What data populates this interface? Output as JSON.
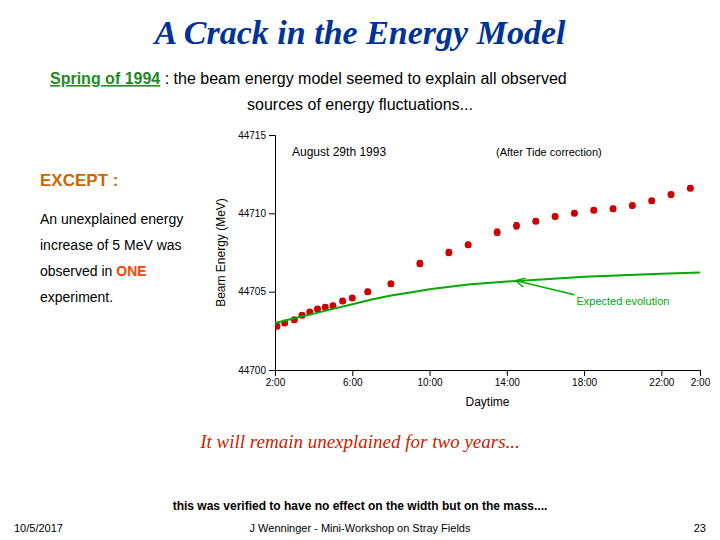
{
  "page": {
    "title": {
      "text": "A Crack in the Energy Model",
      "color": "#003399"
    },
    "intro": [
      [
        {
          "text": "Spring of 1994",
          "color": "#228B22"
        },
        {
          "text": " : the beam energy model seemed to explain all observed"
        }
      ],
      [
        {
          "text": "sources of energy fluctuations..."
        }
      ]
    ],
    "except": {
      "text": "EXCEPT :",
      "color": "#cc6600"
    },
    "description": [
      [
        {
          "text": "An unexplained energy"
        }
      ],
      [
        {
          "text": "increase of 5 MeV was"
        }
      ],
      [
        {
          "text": "observed in "
        },
        {
          "text": "ONE",
          "color": "#ff4400"
        }
      ],
      [
        {
          "text": "experiment."
        }
      ]
    ],
    "conclusion": {
      "text": "It will remain unexplained for two years...",
      "color": "#cc2200"
    },
    "footer": {
      "note": "this was verified to have no effect on the width but on the mass....",
      "center": "J Wenninger - Mini-Workshop on Stray Fields",
      "left": "10/5/2017",
      "right": "23"
    }
  },
  "chart_data": {
    "type": "scatter",
    "title": "August 29th 1993",
    "subtitle": "(After Tide correction)",
    "xlabel": "Daytime",
    "ylabel": "Beam Energy (MeV)",
    "xlim": [
      2,
      24
    ],
    "xticks": [
      {
        "value": 2,
        "label": "2:00"
      },
      {
        "value": 6,
        "label": "6:00"
      },
      {
        "value": 10,
        "label": "10:00"
      },
      {
        "value": 14,
        "label": "14:00"
      },
      {
        "value": 18,
        "label": "18:00"
      },
      {
        "value": 22,
        "label": "22:00"
      },
      {
        "value": 24,
        "label": "2:00"
      }
    ],
    "ylim": [
      44700,
      44715
    ],
    "yticks": [
      44700,
      44705,
      44710,
      44715
    ],
    "grid": false,
    "series": [
      {
        "type": "scatter",
        "color": "#cc0000",
        "x": [
          2.1,
          2.5,
          3.0,
          3.4,
          3.8,
          4.2,
          4.6,
          5.0,
          5.5,
          6.0,
          6.8,
          8.0,
          9.5,
          11.0,
          12.0,
          13.5,
          14.5,
          15.5,
          16.5,
          17.5,
          18.5,
          19.5,
          20.5,
          21.5,
          22.5,
          23.5
        ],
        "values": [
          44702.8,
          44703.0,
          44703.2,
          44703.5,
          44703.7,
          44703.9,
          44704.0,
          44704.1,
          44704.4,
          44704.6,
          44705.0,
          44705.5,
          44706.8,
          44707.5,
          44708.0,
          44708.8,
          44709.2,
          44709.5,
          44709.8,
          44710.0,
          44710.2,
          44710.3,
          44710.5,
          44710.8,
          44711.2,
          44711.6
        ],
        "errors": [
          0.15,
          0.15,
          0.15,
          0.15,
          0.15,
          0.15,
          0.15,
          0.15,
          0.15,
          0.15,
          0.15,
          0.15,
          0.2,
          0.2,
          0.15,
          0.2,
          0.2,
          0.15,
          0.15,
          0.15,
          0.15,
          0.15,
          0.15,
          0.15,
          0.15,
          0.15
        ]
      },
      {
        "type": "line",
        "color": "#00aa00",
        "x": [
          2.0,
          3.0,
          4.0,
          5.0,
          6.0,
          7.0,
          8.0,
          9.0,
          10.0,
          12.0,
          14.0,
          16.0,
          18.0,
          20.0,
          22.0,
          24.0
        ],
        "values": [
          44703.0,
          44703.3,
          44703.6,
          44703.9,
          44704.2,
          44704.5,
          44704.75,
          44704.95,
          44705.15,
          44705.45,
          44705.65,
          44705.8,
          44705.95,
          44706.05,
          44706.15,
          44706.22
        ]
      }
    ],
    "annotations": [
      {
        "text": "Expected evolution",
        "xy": [
          14.5,
          44705.7
        ],
        "xytext": [
          17.5,
          44704.8
        ],
        "color": "#00aa00"
      }
    ]
  }
}
